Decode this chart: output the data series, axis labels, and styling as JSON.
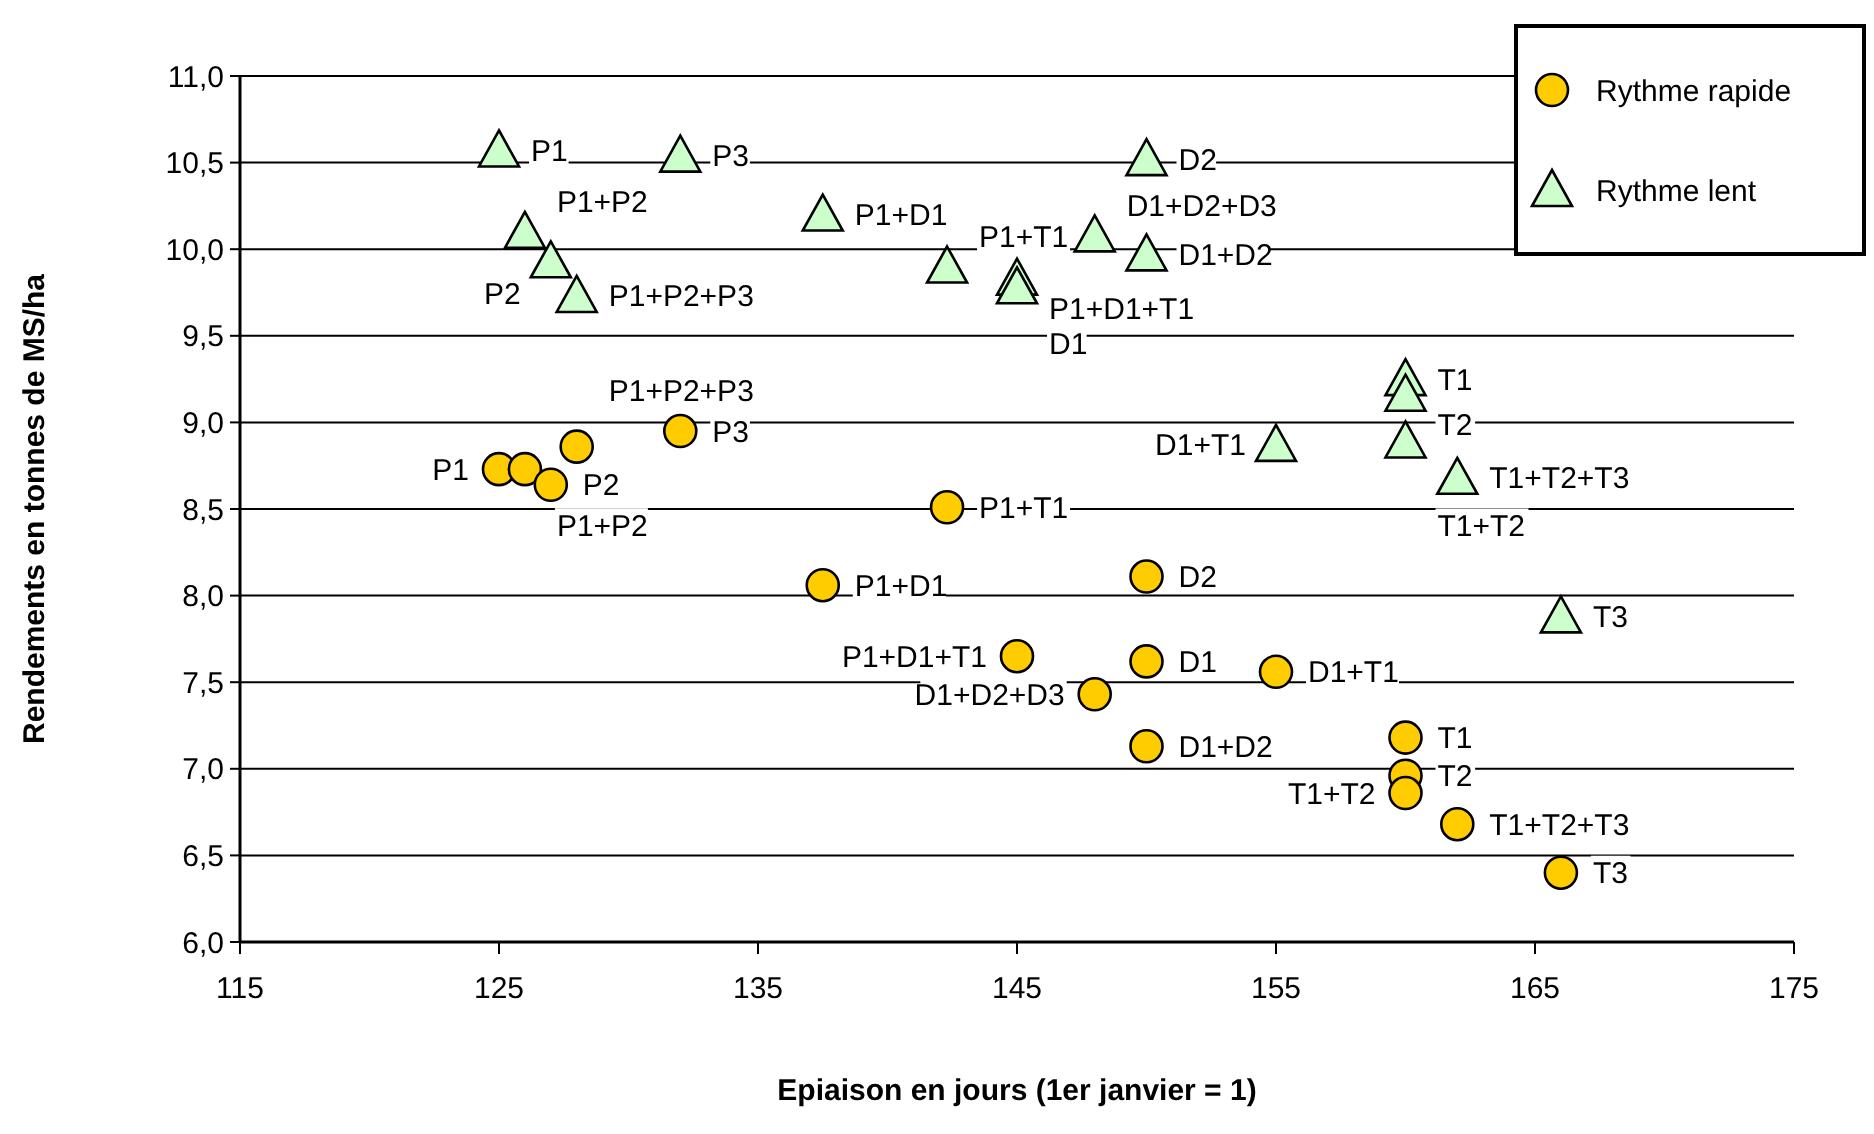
{
  "chart_data": {
    "type": "scatter",
    "xlabel": "Epiaison en jours (1er janvier = 1)",
    "ylabel": "Rendements en tonnes de MS/ha",
    "xlim": [
      115,
      175
    ],
    "xticks": [
      115,
      125,
      135,
      145,
      155,
      165,
      175
    ],
    "ylim": [
      6,
      11
    ],
    "yticks": [
      {
        "value": 6,
        "label": "6,0"
      },
      {
        "value": 6.5,
        "label": "6,5"
      },
      {
        "value": 7,
        "label": "7,0"
      },
      {
        "value": 7.5,
        "label": "7,5"
      },
      {
        "value": 8,
        "label": "8,0"
      },
      {
        "value": 8.5,
        "label": "8,5"
      },
      {
        "value": 9,
        "label": "9,0"
      },
      {
        "value": 9.5,
        "label": "9,5"
      },
      {
        "value": 10,
        "label": "10,0"
      },
      {
        "value": 10.5,
        "label": "10,5"
      },
      {
        "value": 11,
        "label": "11,0"
      }
    ],
    "grid": "y",
    "legend": "top right",
    "series": [
      {
        "name": "Rythme rapide",
        "color": "#ffcc00",
        "marker": "circle",
        "x": [
          125,
          126,
          127,
          128,
          132,
          137.5,
          142.3,
          145,
          150,
          148,
          150,
          150,
          155,
          160,
          160,
          160,
          162,
          166
        ],
        "values": [
          8.73,
          8.73,
          8.64,
          8.86,
          8.95,
          8.06,
          8.51,
          7.65,
          7.62,
          7.43,
          7.13,
          8.11,
          7.56,
          7.18,
          6.96,
          6.86,
          6.68,
          6.4
        ]
      },
      {
        "name": "Rythme lent",
        "color": "#ccffcc",
        "marker": "triangle",
        "x": [
          125,
          132,
          126,
          127,
          128,
          137.5,
          142.3,
          145,
          145,
          150,
          148,
          150,
          155,
          160,
          160,
          160,
          162,
          166
        ],
        "values": [
          10.57,
          10.54,
          10.1,
          9.93,
          9.73,
          10.2,
          9.9,
          9.83,
          9.78,
          10.52,
          10.08,
          9.97,
          8.87,
          9.25,
          9.16,
          8.89,
          8.68,
          7.88
        ]
      }
    ],
    "annotations": [
      {
        "text": "P1",
        "x": 125,
        "y": 8.73
      },
      {
        "text": "P1+P2",
        "x": 126,
        "y": 8.73
      },
      {
        "text": "P2",
        "x": 127,
        "y": 8.64
      },
      {
        "text": "P1+P2+P3",
        "x": 128,
        "y": 8.86
      },
      {
        "text": "P3",
        "x": 132,
        "y": 8.95
      },
      {
        "text": "P1+D1",
        "x": 137.5,
        "y": 8.06
      },
      {
        "text": "P1+T1",
        "x": 142.3,
        "y": 8.51
      },
      {
        "text": "P1+D1+T1",
        "x": 145,
        "y": 7.65
      },
      {
        "text": "D1",
        "x": 150,
        "y": 7.62
      },
      {
        "text": "D1+D2+D3",
        "x": 148,
        "y": 7.43
      },
      {
        "text": "D1+D2",
        "x": 150,
        "y": 7.13
      },
      {
        "text": "D2",
        "x": 150,
        "y": 8.11
      },
      {
        "text": "D1+T1",
        "x": 155,
        "y": 7.56
      },
      {
        "text": "T1",
        "x": 160,
        "y": 7.18
      },
      {
        "text": "T2",
        "x": 160,
        "y": 6.96
      },
      {
        "text": "T1+T2",
        "x": 160,
        "y": 6.86
      },
      {
        "text": "T1+T2+T3",
        "x": 162,
        "y": 6.68
      },
      {
        "text": "T3",
        "x": 166,
        "y": 6.4
      },
      {
        "text": "P1",
        "x": 125,
        "y": 10.57
      },
      {
        "text": "P3",
        "x": 132,
        "y": 10.54
      },
      {
        "text": "P1+P2",
        "x": 126,
        "y": 10.1
      },
      {
        "text": "P2",
        "x": 127,
        "y": 9.93
      },
      {
        "text": "P1+P2+P3",
        "x": 128,
        "y": 9.73
      },
      {
        "text": "P1+D1",
        "x": 137.5,
        "y": 10.2
      },
      {
        "text": "P1+T1",
        "x": 142.3,
        "y": 9.9
      },
      {
        "text": "P1+D1+T1",
        "x": 145,
        "y": 9.83
      },
      {
        "text": "D1",
        "x": 145,
        "y": 9.78
      },
      {
        "text": "D2",
        "x": 150,
        "y": 10.52
      },
      {
        "text": "D1+D2+D3",
        "x": 148,
        "y": 10.08
      },
      {
        "text": "D1+D2",
        "x": 150,
        "y": 9.97
      },
      {
        "text": "D1+T1",
        "x": 155,
        "y": 8.87
      },
      {
        "text": "T1",
        "x": 160,
        "y": 9.25
      },
      {
        "text": "T2",
        "x": 160,
        "y": 9.16
      },
      {
        "text": "T1+T2",
        "x": 160,
        "y": 8.89
      },
      {
        "text": "T1+T2+T3",
        "x": 162,
        "y": 8.68
      },
      {
        "text": "T3",
        "x": 166,
        "y": 7.88
      }
    ]
  }
}
